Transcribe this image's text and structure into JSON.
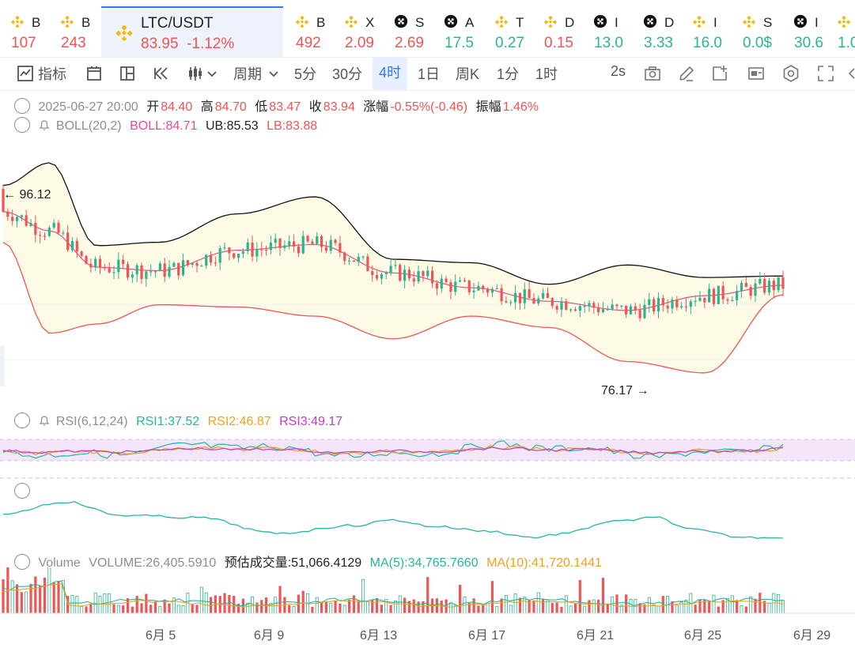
{
  "tabs": [
    {
      "name": "B",
      "price": "107",
      "color": "red",
      "icon": "binance-icon"
    },
    {
      "name": "B",
      "price": "243",
      "color": "red",
      "icon": "binance-icon"
    },
    {
      "name": "LTC/USDT",
      "price": "83.95",
      "change": "-1.12%",
      "color": "red",
      "icon": "binance-icon",
      "active": true
    },
    {
      "name": "B",
      "price": "492",
      "color": "red",
      "icon": "binance-icon"
    },
    {
      "name": "X",
      "price": "2.09",
      "color": "red",
      "icon": "binance-icon"
    },
    {
      "name": "S",
      "price": "2.69",
      "color": "red",
      "icon": "okx-icon"
    },
    {
      "name": "A",
      "price": "17.5",
      "color": "green",
      "icon": "okx-icon"
    },
    {
      "name": "T",
      "price": "0.27",
      "color": "green",
      "icon": "binance-icon"
    },
    {
      "name": "D",
      "price": "0.15",
      "color": "red",
      "icon": "binance-icon"
    },
    {
      "name": "I",
      "price": "13.0",
      "color": "green",
      "icon": "okx-icon"
    },
    {
      "name": "D",
      "price": "3.33",
      "color": "green",
      "icon": "okx-icon"
    },
    {
      "name": "I",
      "price": "16.0",
      "color": "green",
      "icon": "binance-icon"
    },
    {
      "name": "S",
      "price": "0.0$",
      "color": "green",
      "icon": "binance-icon"
    },
    {
      "name": "I",
      "price": "30.6",
      "color": "green",
      "icon": "okx-icon"
    },
    {
      "name": "",
      "price": "1.0",
      "color": "green",
      "icon": "binance-icon"
    }
  ],
  "toolbar": {
    "indicators": "指标",
    "period": "周期",
    "intervals": [
      "5分",
      "30分",
      "4时",
      "1日",
      "周K",
      "1分",
      "1时"
    ],
    "selected_interval": "4时",
    "refresh": "2s"
  },
  "ohlc": {
    "date": "2025-06-27 20:00",
    "open_label": "开",
    "open": "84.40",
    "high_label": "高",
    "high": "84.70",
    "low_label": "低",
    "low": "83.47",
    "close_label": "收",
    "close": "83.94",
    "chg_label": "涨幅",
    "chg": "-0.55%(-0.46)",
    "amp_label": "振幅",
    "amp": "1.46%"
  },
  "boll": {
    "name": "BOLL(20,2)",
    "boll": "BOLL:84.71",
    "ub": "UB:85.53",
    "lb": "LB:83.88"
  },
  "price_marks": {
    "high": "96.12",
    "low": "76.17"
  },
  "rsi": {
    "name": "RSI(6,12,24)",
    "rsi1": "RSI1:37.52",
    "rsi2": "RSI2:46.87",
    "rsi3": "RSI3:49.17"
  },
  "volume": {
    "label": "Volume",
    "vol": "VOLUME:26,405.5910",
    "est": "预估成交量:51,066.4129",
    "ma5": "MA(5):34,765.7660",
    "ma10": "MA(10):41,720.1441"
  },
  "x_labels": [
    "6月 5",
    "6月 9",
    "6月 13",
    "6月 17",
    "6月 21",
    "6月 25",
    "6月 29"
  ],
  "colors": {
    "up": "#2bb58f",
    "down": "#f05454",
    "accent": "#3478f6",
    "boll_mid": "#e84c8c",
    "band_fill": "#fdfbe6"
  },
  "chart_data": [
    {
      "type": "line",
      "title": "BOLL(20,2)",
      "series": [
        {
          "name": "UB",
          "x": [
            0,
            6,
            12,
            20,
            30,
            40,
            50,
            60,
            70,
            80,
            90,
            100
          ],
          "values": [
            93.5,
            95.5,
            88.2,
            88.5,
            91.0,
            92.5,
            87.0,
            86.7,
            84.8,
            86.5,
            85.4,
            85.53
          ]
        },
        {
          "name": "BOLL",
          "x": [
            0,
            6,
            12,
            20,
            30,
            40,
            50,
            60,
            70,
            80,
            90,
            100
          ],
          "values": [
            91.2,
            89.5,
            86.3,
            86.0,
            87.8,
            88.3,
            85.8,
            84.5,
            83.3,
            82.5,
            83.8,
            84.71
          ]
        },
        {
          "name": "LB",
          "x": [
            0,
            6,
            12,
            20,
            30,
            40,
            50,
            60,
            70,
            80,
            90,
            100
          ],
          "values": [
            88.5,
            80.5,
            81.3,
            83.0,
            82.8,
            82.0,
            80.0,
            82.0,
            81.0,
            78.0,
            77.0,
            83.88
          ]
        }
      ],
      "marks": {
        "high": 96.12,
        "low": 76.17
      }
    },
    {
      "type": "line",
      "title": "RSI(6,12,24)",
      "series": [
        {
          "name": "RSI1",
          "values": [
            37.52
          ]
        },
        {
          "name": "RSI2",
          "values": [
            46.87
          ]
        },
        {
          "name": "RSI3",
          "values": [
            49.17
          ]
        }
      ]
    },
    {
      "type": "bar",
      "title": "Volume",
      "series": [
        {
          "name": "VOLUME",
          "values": [
            26405.591
          ]
        },
        {
          "name": "MA(5)",
          "values": [
            34765.766
          ]
        },
        {
          "name": "MA(10)",
          "values": [
            41720.1441
          ]
        }
      ]
    }
  ]
}
